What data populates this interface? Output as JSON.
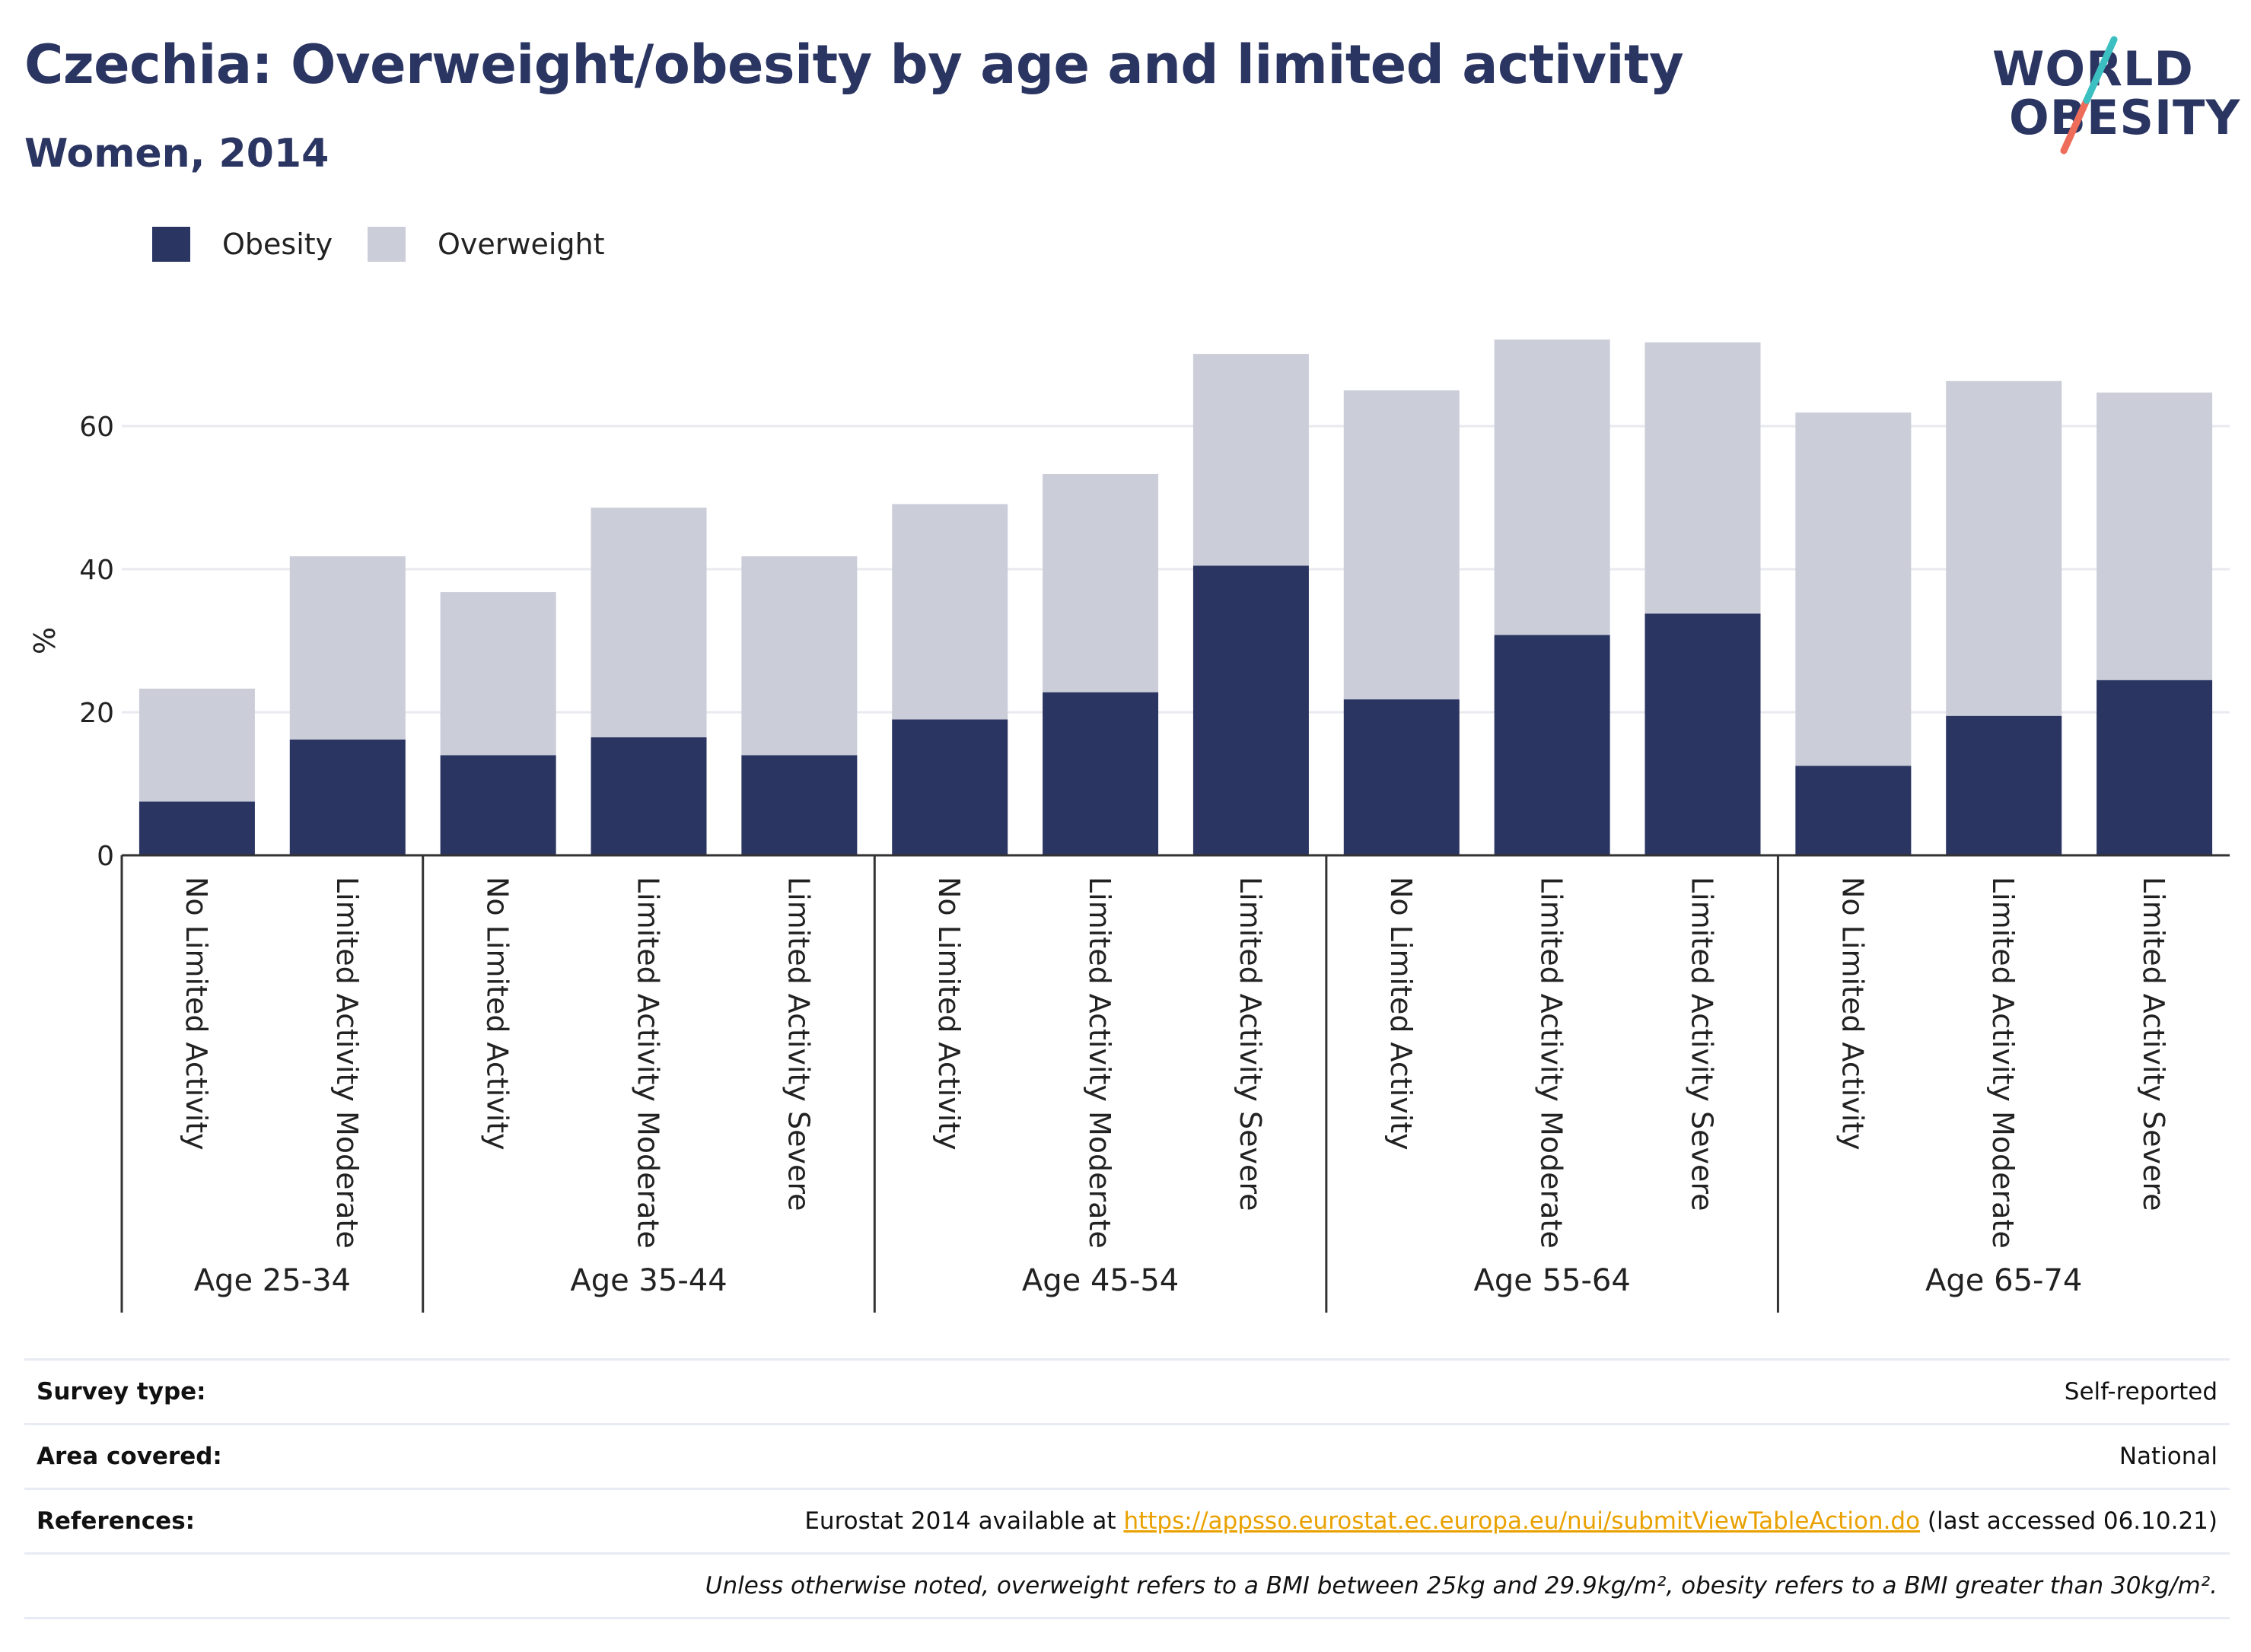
{
  "header": {
    "title": "Czechia: Overweight/obesity by age and limited activity",
    "subtitle": "Women, 2014"
  },
  "logo": {
    "line1": "WORLD",
    "line2": "OBESITY",
    "alt": "World Obesity logo"
  },
  "colors": {
    "obesity": "#2b3562",
    "overweight": "#cbcdd9",
    "grid": "#e8eaf0",
    "axis": "#333333",
    "logo_teal": "#3bbfc0",
    "logo_coral": "#ee6d5a",
    "link": "#e9a100"
  },
  "legend": [
    {
      "key": "obesity",
      "label": "Obesity"
    },
    {
      "key": "overweight",
      "label": "Overweight"
    }
  ],
  "chart_data": {
    "type": "bar",
    "stacked": true,
    "ylabel": "%",
    "ylim": [
      0,
      75
    ],
    "yticks": [
      0,
      20,
      40,
      60
    ],
    "grid": true,
    "legend_position": "top-left",
    "groups": [
      {
        "label": "Age 25-34",
        "categories": [
          "No Limited Activity",
          "Limited Activity Moderate"
        ]
      },
      {
        "label": "Age 35-44",
        "categories": [
          "No Limited Activity",
          "Limited Activity Moderate",
          "Limited Activity Severe"
        ]
      },
      {
        "label": "Age 45-54",
        "categories": [
          "No Limited Activity",
          "Limited Activity Moderate",
          "Limited Activity Severe"
        ]
      },
      {
        "label": "Age 55-64",
        "categories": [
          "No Limited Activity",
          "Limited Activity Moderate",
          "Limited Activity Severe"
        ]
      },
      {
        "label": "Age 65-74",
        "categories": [
          "No Limited Activity",
          "Limited Activity Moderate",
          "Limited Activity Severe"
        ]
      }
    ],
    "series": [
      {
        "name": "Obesity",
        "values": [
          7.5,
          16.2,
          14.0,
          16.5,
          14.0,
          19.0,
          22.8,
          40.5,
          21.8,
          30.8,
          33.8,
          12.5,
          19.5,
          24.5
        ]
      },
      {
        "name": "Overweight",
        "values": [
          15.8,
          25.6,
          22.8,
          32.1,
          27.8,
          30.1,
          30.5,
          29.6,
          43.2,
          41.3,
          37.9,
          49.4,
          46.8,
          40.2
        ]
      }
    ]
  },
  "info": {
    "survey_type_label": "Survey type:",
    "survey_type_value": "Self-reported",
    "area_label": "Area covered:",
    "area_value": "National",
    "references_label": "References:",
    "references_prefix": "Eurostat 2014 available at ",
    "references_link": "https://appsso.eurostat.ec.europa.eu/nui/submitViewTableAction.do",
    "references_suffix": " (last accessed 06.10.21)",
    "note": "Unless otherwise noted, overweight refers to a BMI between 25kg and 29.9kg/m², obesity refers to a BMI greater than 30kg/m²."
  }
}
